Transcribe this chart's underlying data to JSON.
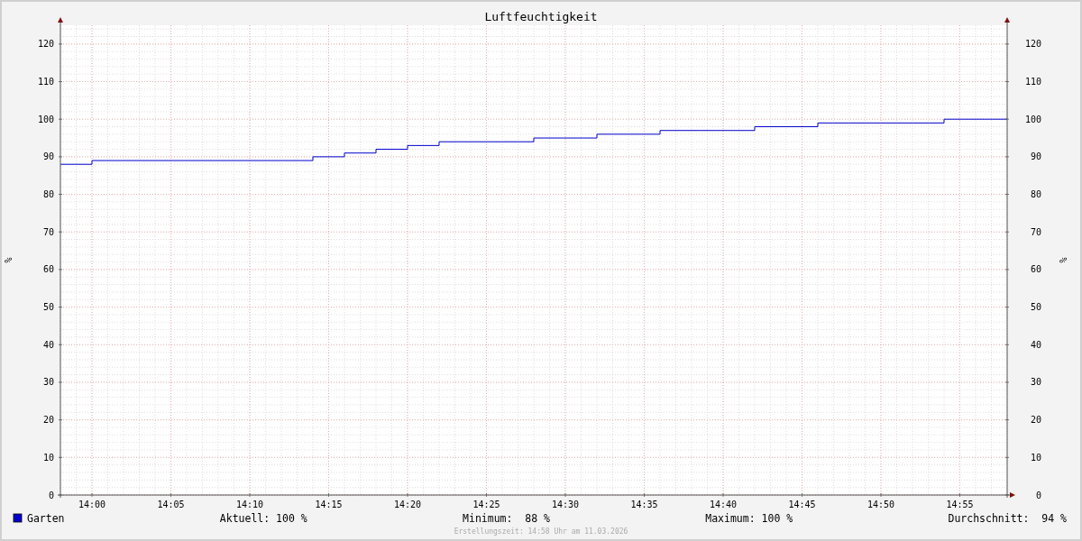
{
  "chart_data": {
    "type": "step",
    "title": "Luftfeuchtigkeit",
    "ylabel": "%",
    "y2label": "%",
    "x": [
      "2026-03-11T13:58",
      "2026-03-11T14:00",
      "2026-03-11T14:14",
      "2026-03-11T14:16",
      "2026-03-11T14:18",
      "2026-03-11T14:20",
      "2026-03-11T14:22",
      "2026-03-11T14:28",
      "2026-03-11T14:32",
      "2026-03-11T14:36",
      "2026-03-11T14:42",
      "2026-03-11T14:46",
      "2026-03-11T14:54",
      "2026-03-11T14:58"
    ],
    "series": [
      {
        "name": "Garten",
        "color": "#0000cc",
        "values": [
          88,
          89,
          90,
          91,
          92,
          93,
          94,
          95,
          96,
          97,
          98,
          99,
          100,
          100
        ]
      }
    ],
    "xlim": [
      "2026-03-11T13:58",
      "2026-03-11T14:58"
    ],
    "xticks": [
      {
        "value": "2026-03-11T14:00",
        "label": "14:00"
      },
      {
        "value": "2026-03-11T14:05",
        "label": "14:05"
      },
      {
        "value": "2026-03-11T14:10",
        "label": "14:10"
      },
      {
        "value": "2026-03-11T14:15",
        "label": "14:15"
      },
      {
        "value": "2026-03-11T14:20",
        "label": "14:20"
      },
      {
        "value": "2026-03-11T14:25",
        "label": "14:25"
      },
      {
        "value": "2026-03-11T14:30",
        "label": "14:30"
      },
      {
        "value": "2026-03-11T14:35",
        "label": "14:35"
      },
      {
        "value": "2026-03-11T14:40",
        "label": "14:40"
      },
      {
        "value": "2026-03-11T14:45",
        "label": "14:45"
      },
      {
        "value": "2026-03-11T14:50",
        "label": "14:50"
      },
      {
        "value": "2026-03-11T14:55",
        "label": "14:55"
      }
    ],
    "ylim": [
      0,
      125
    ],
    "yticks": [
      0,
      10,
      20,
      30,
      40,
      50,
      60,
      70,
      80,
      90,
      100,
      110,
      120
    ],
    "y2lim": [
      0,
      125
    ],
    "y2ticks": [
      0,
      10,
      20,
      30,
      40,
      50,
      60,
      70,
      80,
      90,
      100,
      110,
      120
    ],
    "grid": true,
    "legend": "bottom",
    "line_style": "solid",
    "annotations": [
      "Aktuell: 100 %",
      "Minimum:  88 %",
      "Maximum: 100 %",
      "Durchschnitt:  94 %",
      "Erstellungszeit: 14:58 Uhr am 11.03.2026"
    ]
  }
}
